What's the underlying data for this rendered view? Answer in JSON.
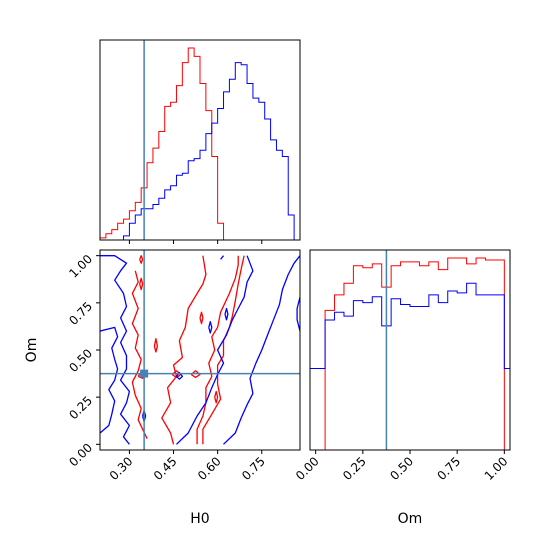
{
  "chart_data": {
    "type": "corner",
    "parameters": [
      "H0",
      "Om"
    ],
    "truths": {
      "H0": 0.35,
      "Om": 0.375
    },
    "colors": {
      "red": "#ff0000",
      "blue": "#0000ff",
      "truth": "#4682b4"
    },
    "grid": false,
    "h0_axis": {
      "label": "H0",
      "range": [
        0.2,
        0.88
      ],
      "ticks": [
        0.3,
        0.45,
        0.6,
        0.75
      ],
      "tick_labels": [
        "0.30",
        "0.45",
        "0.60",
        "0.75"
      ]
    },
    "om_axis": {
      "label": "Om",
      "range": [
        -0.03,
        1.03
      ],
      "ticks": [
        0.0,
        0.25,
        0.5,
        0.75,
        1.0
      ],
      "tick_labels": [
        "0.00",
        "0.25",
        "0.50",
        "0.75",
        "1.00"
      ]
    },
    "hist_h0": {
      "bin_edges": [
        0.2,
        0.22,
        0.24,
        0.26,
        0.28,
        0.3,
        0.32,
        0.34,
        0.36,
        0.38,
        0.4,
        0.42,
        0.44,
        0.46,
        0.48,
        0.5,
        0.52,
        0.54,
        0.56,
        0.58,
        0.6,
        0.62,
        0.64,
        0.66,
        0.68,
        0.7,
        0.72,
        0.74,
        0.76,
        0.78,
        0.8,
        0.82,
        0.84,
        0.86,
        0.88
      ],
      "series": [
        {
          "color": "red",
          "values": [
            1,
            3,
            5,
            8,
            10,
            14,
            18,
            25,
            37,
            44,
            52,
            64,
            66,
            74,
            85,
            92,
            88,
            75,
            62,
            40,
            8,
            0,
            0,
            0,
            0,
            0,
            0,
            0,
            0,
            0,
            0,
            0,
            0,
            0
          ]
        },
        {
          "color": "blue",
          "values": [
            0,
            0,
            0,
            0,
            2,
            8,
            12,
            15,
            15,
            17,
            20,
            24,
            26,
            31,
            32,
            38,
            39,
            43,
            51,
            56,
            63,
            71,
            77,
            85,
            84,
            75,
            68,
            66,
            58,
            48,
            43,
            40,
            12,
            0
          ]
        }
      ]
    },
    "hist_om": {
      "bin_edges": [
        -0.03,
        0.0,
        0.05,
        0.1,
        0.15,
        0.2,
        0.25,
        0.3,
        0.35,
        0.4,
        0.45,
        0.5,
        0.55,
        0.6,
        0.65,
        0.7,
        0.75,
        0.8,
        0.85,
        0.9,
        0.95,
        1.0,
        1.03
      ],
      "series": [
        {
          "color": "red",
          "values": [
            0,
            0,
            72,
            80,
            86,
            95,
            94,
            96,
            84,
            95,
            97,
            97,
            95,
            97,
            93,
            99,
            99,
            96,
            99,
            98,
            98,
            0
          ]
        },
        {
          "color": "blue",
          "values": [
            42,
            42,
            67,
            71,
            69,
            77,
            76,
            79,
            64,
            78,
            75,
            74,
            74,
            80,
            76,
            82,
            81,
            86,
            80,
            80,
            80,
            42
          ]
        }
      ]
    },
    "contours": [
      {
        "color": "red",
        "paths": [
          [
            [
              0.32,
              0.92
            ],
            [
              0.33,
              0.86
            ],
            [
              0.31,
              0.8
            ],
            [
              0.33,
              0.72
            ],
            [
              0.31,
              0.64
            ],
            [
              0.33,
              0.58
            ],
            [
              0.32,
              0.51
            ],
            [
              0.34,
              0.45
            ],
            [
              0.33,
              0.39
            ],
            [
              0.31,
              0.33
            ],
            [
              0.32,
              0.26
            ],
            [
              0.34,
              0.19
            ],
            [
              0.33,
              0.13
            ],
            [
              0.36,
              0.03
            ]
          ],
          [
            [
              0.45,
              0.0
            ],
            [
              0.44,
              0.06
            ],
            [
              0.41,
              0.14
            ],
            [
              0.44,
              0.22
            ],
            [
              0.43,
              0.3
            ],
            [
              0.46,
              0.36
            ],
            [
              0.45,
              0.42
            ],
            [
              0.48,
              0.46
            ],
            [
              0.47,
              0.55
            ],
            [
              0.49,
              0.62
            ],
            [
              0.5,
              0.72
            ],
            [
              0.53,
              0.8
            ],
            [
              0.55,
              0.85
            ],
            [
              0.56,
              0.9
            ],
            [
              0.55,
              1.0
            ]
          ],
          [
            [
              0.53,
              0.0
            ],
            [
              0.53,
              0.08
            ],
            [
              0.55,
              0.15
            ],
            [
              0.56,
              0.22
            ],
            [
              0.56,
              0.3
            ],
            [
              0.58,
              0.36
            ],
            [
              0.57,
              0.43
            ],
            [
              0.59,
              0.5
            ],
            [
              0.58,
              0.57
            ],
            [
              0.6,
              0.62
            ],
            [
              0.61,
              0.7
            ],
            [
              0.64,
              0.8
            ],
            [
              0.66,
              0.88
            ],
            [
              0.67,
              0.95
            ],
            [
              0.67,
              1.0
            ]
          ],
          [
            [
              0.55,
              0.0
            ],
            [
              0.55,
              0.08
            ],
            [
              0.58,
              0.16
            ],
            [
              0.61,
              0.24
            ],
            [
              0.6,
              0.32
            ],
            [
              0.6,
              0.42
            ],
            [
              0.62,
              0.47
            ],
            [
              0.62,
              0.55
            ],
            [
              0.64,
              0.62
            ],
            [
              0.65,
              0.68
            ],
            [
              0.66,
              0.76
            ],
            [
              0.67,
              0.85
            ],
            [
              0.68,
              0.93
            ],
            [
              0.69,
              1.0
            ]
          ],
          [
            [
              0.33,
              0.36
            ],
            [
              0.345,
              0.39
            ],
            [
              0.36,
              0.37
            ],
            [
              0.345,
              0.35
            ],
            [
              0.33,
              0.36
            ]
          ],
          [
            [
              0.445,
              0.37
            ],
            [
              0.46,
              0.39
            ],
            [
              0.475,
              0.37
            ],
            [
              0.46,
              0.355
            ],
            [
              0.445,
              0.37
            ]
          ],
          [
            [
              0.51,
              0.37
            ],
            [
              0.525,
              0.39
            ],
            [
              0.54,
              0.37
            ],
            [
              0.525,
              0.355
            ],
            [
              0.51,
              0.37
            ]
          ],
          [
            [
              0.385,
              0.52
            ],
            [
              0.39,
              0.56
            ],
            [
              0.395,
              0.52
            ],
            [
              0.39,
              0.49
            ],
            [
              0.385,
              0.52
            ]
          ],
          [
            [
              0.54,
              0.67
            ],
            [
              0.545,
              0.7
            ],
            [
              0.55,
              0.67
            ],
            [
              0.545,
              0.64
            ],
            [
              0.54,
              0.67
            ]
          ],
          [
            [
              0.59,
              0.25
            ],
            [
              0.595,
              0.28
            ],
            [
              0.6,
              0.25
            ],
            [
              0.595,
              0.22
            ],
            [
              0.59,
              0.25
            ]
          ],
          [
            [
              0.335,
              0.85
            ],
            [
              0.34,
              0.88
            ],
            [
              0.345,
              0.85
            ],
            [
              0.34,
              0.82
            ],
            [
              0.335,
              0.85
            ]
          ],
          [
            [
              0.335,
              0.98
            ],
            [
              0.34,
              1.0
            ],
            [
              0.345,
              0.98
            ],
            [
              0.34,
              0.96
            ],
            [
              0.335,
              0.98
            ]
          ]
        ]
      },
      {
        "color": "blue",
        "paths": [
          [
            [
              0.2,
              1.0
            ],
            [
              0.25,
              1.0
            ],
            [
              0.29,
              0.96
            ],
            [
              0.27,
              0.92
            ],
            [
              0.25,
              0.87
            ],
            [
              0.28,
              0.8
            ],
            [
              0.29,
              0.73
            ],
            [
              0.27,
              0.67
            ],
            [
              0.29,
              0.6
            ],
            [
              0.27,
              0.54
            ],
            [
              0.29,
              0.47
            ],
            [
              0.29,
              0.4
            ],
            [
              0.27,
              0.34
            ],
            [
              0.3,
              0.28
            ],
            [
              0.29,
              0.22
            ],
            [
              0.27,
              0.16
            ],
            [
              0.3,
              0.1
            ],
            [
              0.28,
              0.04
            ],
            [
              0.3,
              0.0
            ]
          ],
          [
            [
              0.2,
              0.6
            ],
            [
              0.25,
              0.62
            ],
            [
              0.26,
              0.57
            ],
            [
              0.24,
              0.51
            ],
            [
              0.25,
              0.45
            ],
            [
              0.26,
              0.4
            ],
            [
              0.25,
              0.34
            ],
            [
              0.23,
              0.29
            ],
            [
              0.25,
              0.23
            ],
            [
              0.24,
              0.16
            ],
            [
              0.23,
              0.1
            ],
            [
              0.2,
              0.06
            ]
          ],
          [
            [
              0.46,
              0.0
            ],
            [
              0.5,
              0.06
            ],
            [
              0.53,
              0.15
            ],
            [
              0.56,
              0.22
            ],
            [
              0.58,
              0.3
            ],
            [
              0.6,
              0.37
            ],
            [
              0.62,
              0.43
            ],
            [
              0.6,
              0.5
            ],
            [
              0.63,
              0.58
            ],
            [
              0.65,
              0.66
            ],
            [
              0.67,
              0.72
            ],
            [
              0.69,
              0.78
            ],
            [
              0.7,
              0.86
            ],
            [
              0.72,
              0.92
            ],
            [
              0.7,
              1.0
            ]
          ],
          [
            [
              0.62,
              0.0
            ],
            [
              0.66,
              0.06
            ],
            [
              0.68,
              0.14
            ],
            [
              0.7,
              0.21
            ],
            [
              0.72,
              0.27
            ],
            [
              0.71,
              0.35
            ],
            [
              0.73,
              0.43
            ],
            [
              0.75,
              0.5
            ],
            [
              0.77,
              0.58
            ],
            [
              0.79,
              0.66
            ],
            [
              0.81,
              0.74
            ],
            [
              0.82,
              0.82
            ],
            [
              0.84,
              0.9
            ],
            [
              0.86,
              0.96
            ],
            [
              0.88,
              1.0
            ]
          ],
          [
            [
              0.88,
              0.6
            ],
            [
              0.87,
              0.66
            ],
            [
              0.87,
              0.72
            ],
            [
              0.88,
              0.78
            ]
          ],
          [
            [
              0.61,
              0.98
            ],
            [
              0.62,
              1.0
            ]
          ],
          [
            [
              0.345,
              0.15
            ],
            [
              0.35,
              0.18
            ],
            [
              0.355,
              0.15
            ],
            [
              0.35,
              0.12
            ],
            [
              0.345,
              0.15
            ]
          ],
          [
            [
              0.57,
              0.62
            ],
            [
              0.575,
              0.65
            ],
            [
              0.58,
              0.62
            ],
            [
              0.575,
              0.59
            ],
            [
              0.57,
              0.62
            ]
          ],
          [
            [
              0.625,
              0.69
            ],
            [
              0.63,
              0.72
            ],
            [
              0.635,
              0.69
            ],
            [
              0.63,
              0.66
            ],
            [
              0.625,
              0.69
            ]
          ],
          [
            [
              0.46,
              0.36
            ],
            [
              0.47,
              0.38
            ],
            [
              0.48,
              0.36
            ],
            [
              0.47,
              0.345
            ],
            [
              0.46,
              0.36
            ]
          ]
        ]
      }
    ]
  }
}
